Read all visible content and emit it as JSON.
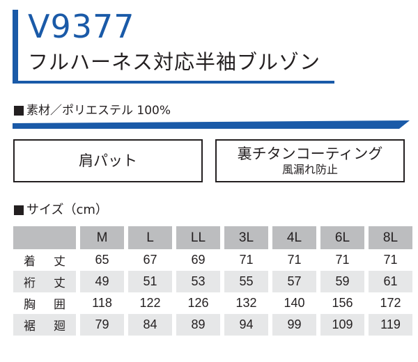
{
  "header": {
    "model": "V9377",
    "subtitle": "フルハーネス対応半袖ブルゾン",
    "accent_color": "#1a5aa8"
  },
  "material": {
    "text": "素材／ポリエステル 100%"
  },
  "features": [
    {
      "title": "肩パット",
      "sub": ""
    },
    {
      "title": "裏チタンコーティング",
      "sub": "風漏れ防止"
    }
  ],
  "size_section": {
    "heading": "サイズ（cm）",
    "columns": [
      "M",
      "L",
      "LL",
      "3L",
      "4L",
      "6L",
      "8L"
    ],
    "rows": [
      {
        "label": [
          "着",
          "丈"
        ],
        "values": [
          "65",
          "67",
          "69",
          "71",
          "71",
          "71",
          "71"
        ]
      },
      {
        "label": [
          "裄",
          "丈"
        ],
        "values": [
          "49",
          "51",
          "53",
          "55",
          "57",
          "59",
          "61"
        ]
      },
      {
        "label": [
          "胸",
          "囲"
        ],
        "values": [
          "118",
          "122",
          "126",
          "132",
          "140",
          "156",
          "172"
        ]
      },
      {
        "label": [
          "裾",
          "廻"
        ],
        "values": [
          "79",
          "84",
          "89",
          "94",
          "99",
          "109",
          "119"
        ]
      }
    ]
  }
}
